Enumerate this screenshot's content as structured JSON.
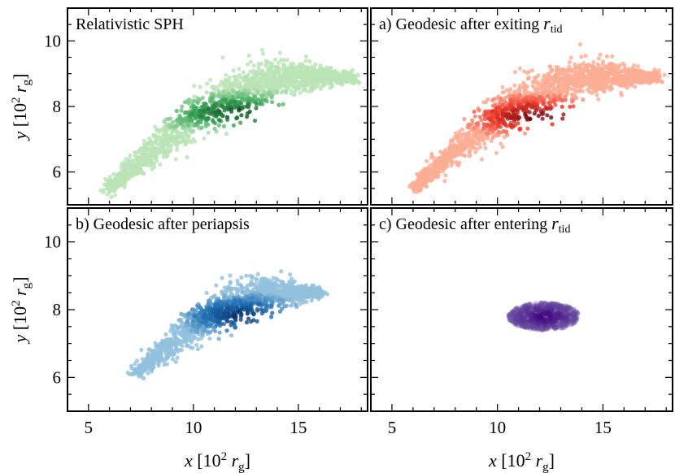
{
  "chart_data": [
    {
      "type": "scatter",
      "title": "Relativistic SPH",
      "title_parts": {
        "main": "Relativistic SPH",
        "sub": ""
      },
      "colormap": "Greens",
      "colors": {
        "light": "#c7e9c0",
        "mid": "#41ab5d",
        "dark": "#00441b"
      },
      "xlabel": "",
      "ylabel": "y [10² r_g]",
      "xlim": [
        4,
        18.3
      ],
      "ylim": [
        5,
        11
      ],
      "xticks": [
        5,
        10,
        15
      ],
      "yticks": [
        6,
        8,
        10
      ],
      "ytick_labels": [
        "6",
        "8",
        "10"
      ],
      "distribution": {
        "x_start": 5.8,
        "y_start": 5.4,
        "x_end": 17.7,
        "y_end": 8.9,
        "core_x": 12.3,
        "core_y": 7.8,
        "width": 1.1,
        "spread": 0.35
      },
      "n_points": 1800
    },
    {
      "type": "scatter",
      "title": "a) Geodesic after exiting r_tid",
      "title_parts": {
        "main": "a) Geodesic after exiting ",
        "var": "r",
        "sub": "tid"
      },
      "colormap": "Reds",
      "colors": {
        "light": "#fcbba1",
        "mid": "#ef3b2c",
        "dark": "#67000d"
      },
      "xlabel": "",
      "ylabel": "",
      "xlim": [
        4,
        18.3
      ],
      "ylim": [
        5,
        11
      ],
      "xticks": [
        5,
        10,
        15
      ],
      "yticks": [
        6,
        8,
        10
      ],
      "distribution": {
        "x_start": 6.0,
        "y_start": 5.5,
        "x_end": 17.6,
        "y_end": 8.9,
        "core_x": 12.0,
        "core_y": 7.7,
        "width": 1.0,
        "spread": 0.35
      },
      "n_points": 1800
    },
    {
      "type": "scatter",
      "title": "b) Geodesic after periapsis",
      "title_parts": {
        "main": "b) Geodesic after periapsis",
        "sub": ""
      },
      "colormap": "Blues",
      "colors": {
        "light": "#9ecae1",
        "mid": "#2171b5",
        "dark": "#08306b"
      },
      "xlabel": "x [10² r_g]",
      "ylabel": "y [10² r_g]",
      "xlim": [
        4,
        18.3
      ],
      "ylim": [
        5,
        11
      ],
      "xticks": [
        5,
        10,
        15
      ],
      "yticks": [
        6,
        8,
        10
      ],
      "xtick_labels": [
        "5",
        "10",
        "15"
      ],
      "ytick_labels": [
        "6",
        "8",
        "10"
      ],
      "distribution": {
        "x_start": 7.2,
        "y_start": 6.1,
        "x_end": 16.1,
        "y_end": 8.5,
        "core_x": 12.3,
        "core_y": 7.8,
        "width": 0.75,
        "spread": 0.3
      },
      "n_points": 1500
    },
    {
      "type": "scatter",
      "title": "c) Geodesic after entering r_tid",
      "title_parts": {
        "main": "c) Geodesic after entering ",
        "var": "r",
        "sub": "tid"
      },
      "colormap": "Purples",
      "colors": {
        "light": "#bcbddc",
        "mid": "#6a51a3",
        "dark": "#3f007d"
      },
      "xlabel": "x [10² r_g]",
      "ylabel": "",
      "xlim": [
        4,
        18.3
      ],
      "ylim": [
        5,
        11
      ],
      "xticks": [
        5,
        10,
        15
      ],
      "yticks": [
        6,
        8,
        10
      ],
      "xtick_labels": [
        "5",
        "10",
        "15"
      ],
      "distribution": {
        "center_x": 12.2,
        "center_y": 7.8,
        "rx": 1.75,
        "ry": 0.42
      },
      "n_points": 700
    }
  ],
  "axis_text": {
    "y_var": "y",
    "x_var": "x",
    "unit_open": " [10",
    "unit_exp": "2",
    "unit_r": "r",
    "unit_sub": "g",
    "unit_close": "]"
  }
}
